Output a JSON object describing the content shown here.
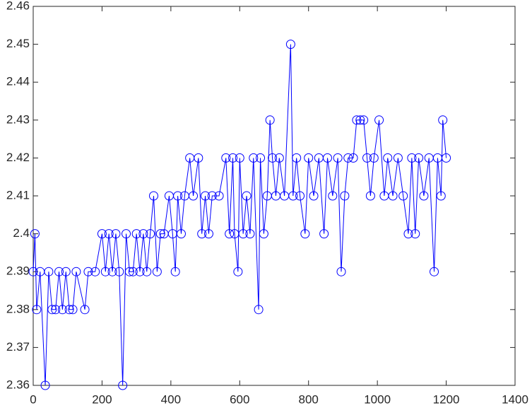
{
  "chart_data": {
    "type": "line",
    "marker": "circle",
    "color": "#0000ff",
    "x": [
      0,
      5,
      10,
      20,
      35,
      45,
      55,
      65,
      75,
      85,
      95,
      105,
      115,
      125,
      150,
      160,
      180,
      200,
      210,
      220,
      230,
      240,
      250,
      260,
      270,
      280,
      290,
      300,
      310,
      320,
      330,
      340,
      350,
      360,
      370,
      380,
      395,
      405,
      413,
      420,
      430,
      440,
      455,
      465,
      480,
      490,
      500,
      510,
      520,
      540,
      560,
      570,
      580,
      585,
      595,
      600,
      610,
      620,
      630,
      640,
      655,
      660,
      670,
      680,
      688,
      695,
      705,
      715,
      730,
      748,
      755,
      765,
      775,
      790,
      800,
      815,
      830,
      845,
      855,
      870,
      885,
      895,
      905,
      915,
      930,
      940,
      950,
      960,
      970,
      980,
      990,
      1005,
      1020,
      1030,
      1045,
      1060,
      1075,
      1090,
      1100,
      1110,
      1120,
      1135,
      1150,
      1165,
      1175,
      1185,
      1190,
      1200
    ],
    "values": [
      2.39,
      2.4,
      2.38,
      2.39,
      2.36,
      2.39,
      2.38,
      2.38,
      2.39,
      2.38,
      2.39,
      2.38,
      2.38,
      2.39,
      2.38,
      2.39,
      2.39,
      2.4,
      2.39,
      2.4,
      2.39,
      2.4,
      2.39,
      2.36,
      2.4,
      2.39,
      2.39,
      2.4,
      2.39,
      2.4,
      2.39,
      2.4,
      2.41,
      2.39,
      2.4,
      2.4,
      2.41,
      2.4,
      2.39,
      2.41,
      2.4,
      2.41,
      2.42,
      2.41,
      2.42,
      2.4,
      2.41,
      2.4,
      2.41,
      2.41,
      2.42,
      2.4,
      2.42,
      2.4,
      2.39,
      2.42,
      2.4,
      2.41,
      2.4,
      2.42,
      2.38,
      2.42,
      2.4,
      2.41,
      2.43,
      2.42,
      2.41,
      2.42,
      2.41,
      2.45,
      2.41,
      2.42,
      2.41,
      2.4,
      2.42,
      2.41,
      2.42,
      2.4,
      2.42,
      2.41,
      2.42,
      2.39,
      2.41,
      2.42,
      2.42,
      2.43,
      2.43,
      2.43,
      2.42,
      2.41,
      2.42,
      2.43,
      2.41,
      2.42,
      2.41,
      2.42,
      2.41,
      2.4,
      2.42,
      2.4,
      2.42,
      2.41,
      2.42,
      2.39,
      2.42,
      2.41,
      2.43,
      2.42
    ],
    "xlim": [
      0,
      1400
    ],
    "xticks": [
      0,
      200,
      400,
      600,
      800,
      1000,
      1200,
      1400
    ],
    "ylim": [
      2.36,
      2.46
    ],
    "yticks": [
      2.36,
      2.37,
      2.38,
      2.39,
      2.4,
      2.41,
      2.42,
      2.43,
      2.44,
      2.45,
      2.46
    ]
  }
}
